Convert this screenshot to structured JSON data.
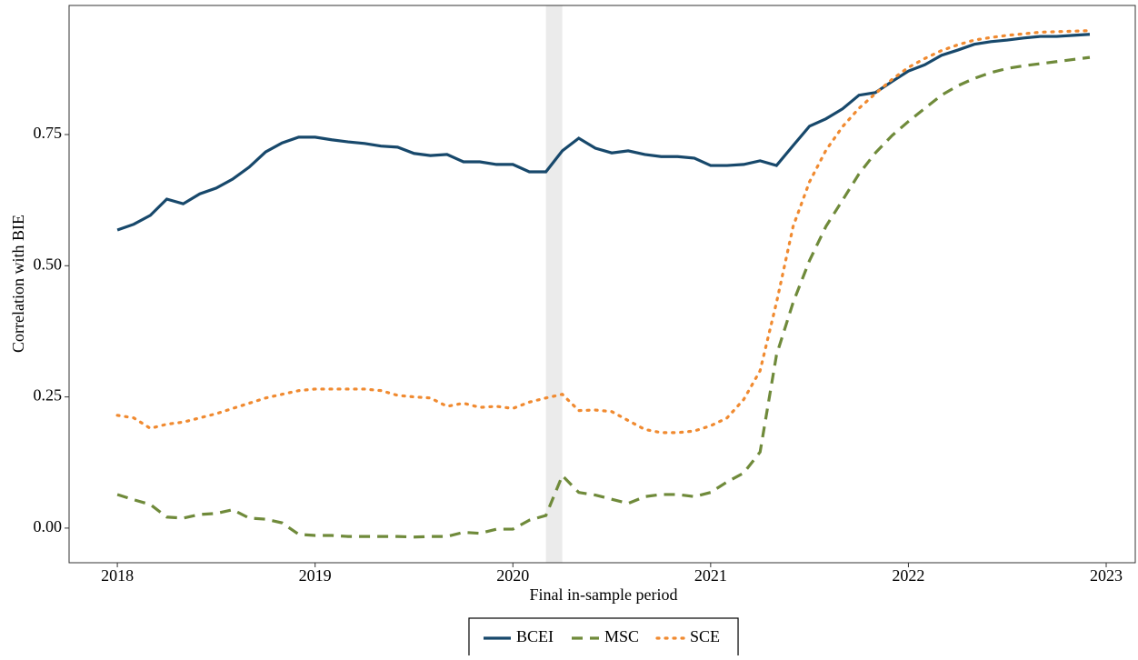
{
  "chart_data": {
    "type": "line",
    "xlabel": "Final in-sample period",
    "ylabel": "Correlation with BIE",
    "x": [
      2018,
      2018.083,
      2018.167,
      2018.25,
      2018.333,
      2018.417,
      2018.5,
      2018.583,
      2018.667,
      2018.75,
      2018.833,
      2018.917,
      2019,
      2019.083,
      2019.167,
      2019.25,
      2019.333,
      2019.417,
      2019.5,
      2019.583,
      2019.667,
      2019.75,
      2019.833,
      2019.917,
      2020,
      2020.083,
      2020.167,
      2020.25,
      2020.333,
      2020.417,
      2020.5,
      2020.583,
      2020.667,
      2020.75,
      2020.833,
      2020.917,
      2021,
      2021.083,
      2021.167,
      2021.25,
      2021.333,
      2021.417,
      2021.5,
      2021.583,
      2021.667,
      2021.75,
      2021.833,
      2021.917,
      2022,
      2022.083,
      2022.167,
      2022.25,
      2022.333,
      2022.417,
      2022.5,
      2022.583,
      2022.667,
      2022.75,
      2022.833,
      2022.917
    ],
    "series": [
      {
        "name": "BCEI",
        "color": "#17486b",
        "style": "solid",
        "values": [
          0.568,
          0.579,
          0.596,
          0.627,
          0.618,
          0.637,
          0.648,
          0.665,
          0.688,
          0.717,
          0.734,
          0.745,
          0.745,
          0.74,
          0.736,
          0.733,
          0.728,
          0.726,
          0.714,
          0.71,
          0.712,
          0.698,
          0.698,
          0.693,
          0.693,
          0.679,
          0.679,
          0.719,
          0.743,
          0.724,
          0.715,
          0.719,
          0.712,
          0.708,
          0.708,
          0.705,
          0.691,
          0.691,
          0.693,
          0.7,
          0.691,
          0.729,
          0.766,
          0.78,
          0.799,
          0.825,
          0.83,
          0.851,
          0.871,
          0.883,
          0.901,
          0.911,
          0.922,
          0.927,
          0.93,
          0.934,
          0.937,
          0.937,
          0.939,
          0.941
        ]
      },
      {
        "name": "MSC",
        "color": "#6f8a3a",
        "style": "dashed",
        "values": [
          0.064,
          0.054,
          0.045,
          0.021,
          0.019,
          0.026,
          0.028,
          0.035,
          0.019,
          0.017,
          0.01,
          -0.012,
          -0.014,
          -0.014,
          -0.016,
          -0.016,
          -0.016,
          -0.016,
          -0.017,
          -0.016,
          -0.016,
          -0.008,
          -0.01,
          -0.002,
          -0.002,
          0.015,
          0.024,
          0.1,
          0.068,
          0.063,
          0.055,
          0.047,
          0.06,
          0.064,
          0.064,
          0.06,
          0.068,
          0.088,
          0.105,
          0.145,
          0.33,
          0.43,
          0.51,
          0.575,
          0.625,
          0.675,
          0.715,
          0.748,
          0.775,
          0.8,
          0.825,
          0.843,
          0.857,
          0.868,
          0.876,
          0.881,
          0.885,
          0.889,
          0.893,
          0.897
        ]
      },
      {
        "name": "SCE",
        "color": "#f08a30",
        "style": "dotted",
        "values": [
          0.215,
          0.21,
          0.19,
          0.198,
          0.202,
          0.21,
          0.218,
          0.228,
          0.238,
          0.248,
          0.255,
          0.262,
          0.265,
          0.265,
          0.265,
          0.265,
          0.262,
          0.253,
          0.25,
          0.248,
          0.232,
          0.238,
          0.23,
          0.232,
          0.228,
          0.24,
          0.248,
          0.255,
          0.224,
          0.225,
          0.222,
          0.205,
          0.188,
          0.182,
          0.182,
          0.185,
          0.195,
          0.21,
          0.245,
          0.3,
          0.43,
          0.575,
          0.66,
          0.72,
          0.765,
          0.8,
          0.828,
          0.855,
          0.878,
          0.895,
          0.91,
          0.921,
          0.93,
          0.935,
          0.939,
          0.942,
          0.945,
          0.946,
          0.947,
          0.948
        ]
      }
    ],
    "shade": [
      2020.167,
      2020.25
    ],
    "xlim": [
      2017.756,
      2023.147
    ],
    "ylim": [
      -0.066,
      0.996
    ],
    "xticks": [
      2018,
      2019,
      2020,
      2021,
      2022,
      2023
    ],
    "yticks": [
      {
        "value": 0,
        "label": "0.00"
      },
      {
        "value": 0.25,
        "label": "0.25"
      },
      {
        "value": 0.5,
        "label": "0.50"
      },
      {
        "value": 0.75,
        "label": "0.75"
      }
    ],
    "legend": "bottom"
  }
}
